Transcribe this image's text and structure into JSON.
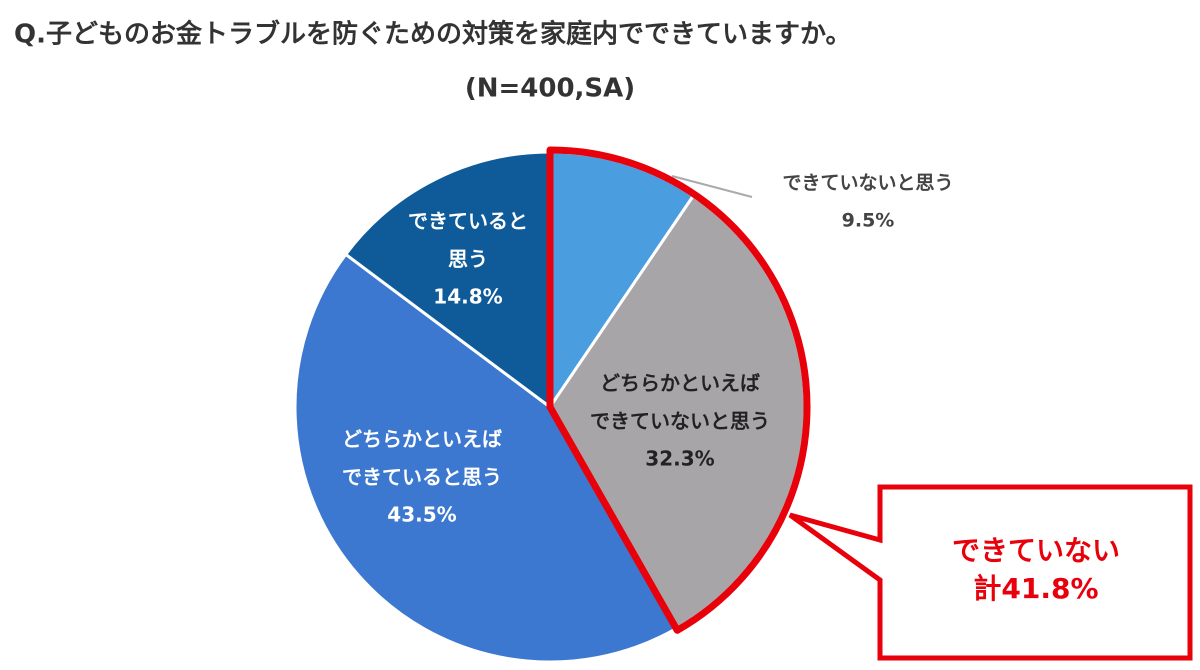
{
  "chart_data": {
    "type": "pie",
    "title": "Q.子どものお金トラブルを防ぐための対策を家庭内でできていますか。",
    "subtitle": "(N=400,SA)",
    "categories": [
      "できていないと思う",
      "どちらかといえばできていないと思う",
      "どちらかといえばできていると思う",
      "できていると思う"
    ],
    "values": [
      9.5,
      32.3,
      43.5,
      14.8
    ],
    "value_labels": [
      "9.5%",
      "32.3%",
      "43.5%",
      "14.8%"
    ],
    "colors": [
      "#4a9ee0",
      "#a7a5a7",
      "#3d78d0",
      "#0f5b9a"
    ],
    "annotation": "できていない計41.8%",
    "highlight_color": "#e8000b"
  }
}
